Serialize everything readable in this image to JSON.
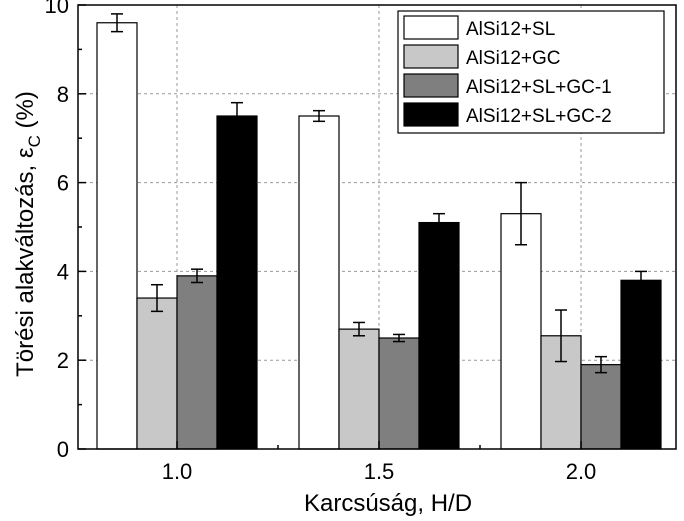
{
  "chart_data": {
    "type": "bar",
    "xlabel": "Karcsúság, H/D",
    "ylabel_main": "Törési alakváltozás, ε",
    "ylabel_sub": "C",
    "ylabel_unit": " (%)",
    "ylim": [
      0,
      10
    ],
    "yticks": [
      "0",
      "2",
      "4",
      "6",
      "8",
      "10"
    ],
    "categories": [
      "1.0",
      "1.5",
      "2.0"
    ],
    "grid": true,
    "legend_position": "top-right",
    "series": [
      {
        "name": "AlSi12+SL",
        "color": "#ffffff",
        "values": [
          9.6,
          7.5,
          5.3
        ],
        "errors": [
          0.2,
          0.12,
          0.7
        ]
      },
      {
        "name": "AlSi12+GC",
        "color": "#c8c8c8",
        "values": [
          3.4,
          2.7,
          2.55
        ],
        "errors": [
          0.3,
          0.15,
          0.58
        ]
      },
      {
        "name": "AlSi12+SL+GC-1",
        "color": "#7f7f7f",
        "values": [
          3.9,
          2.5,
          1.9
        ],
        "errors": [
          0.15,
          0.08,
          0.18
        ]
      },
      {
        "name": "AlSi12+SL+GC-2",
        "color": "#000000",
        "values": [
          7.5,
          5.1,
          3.8
        ],
        "errors": [
          0.3,
          0.2,
          0.2
        ]
      }
    ]
  }
}
